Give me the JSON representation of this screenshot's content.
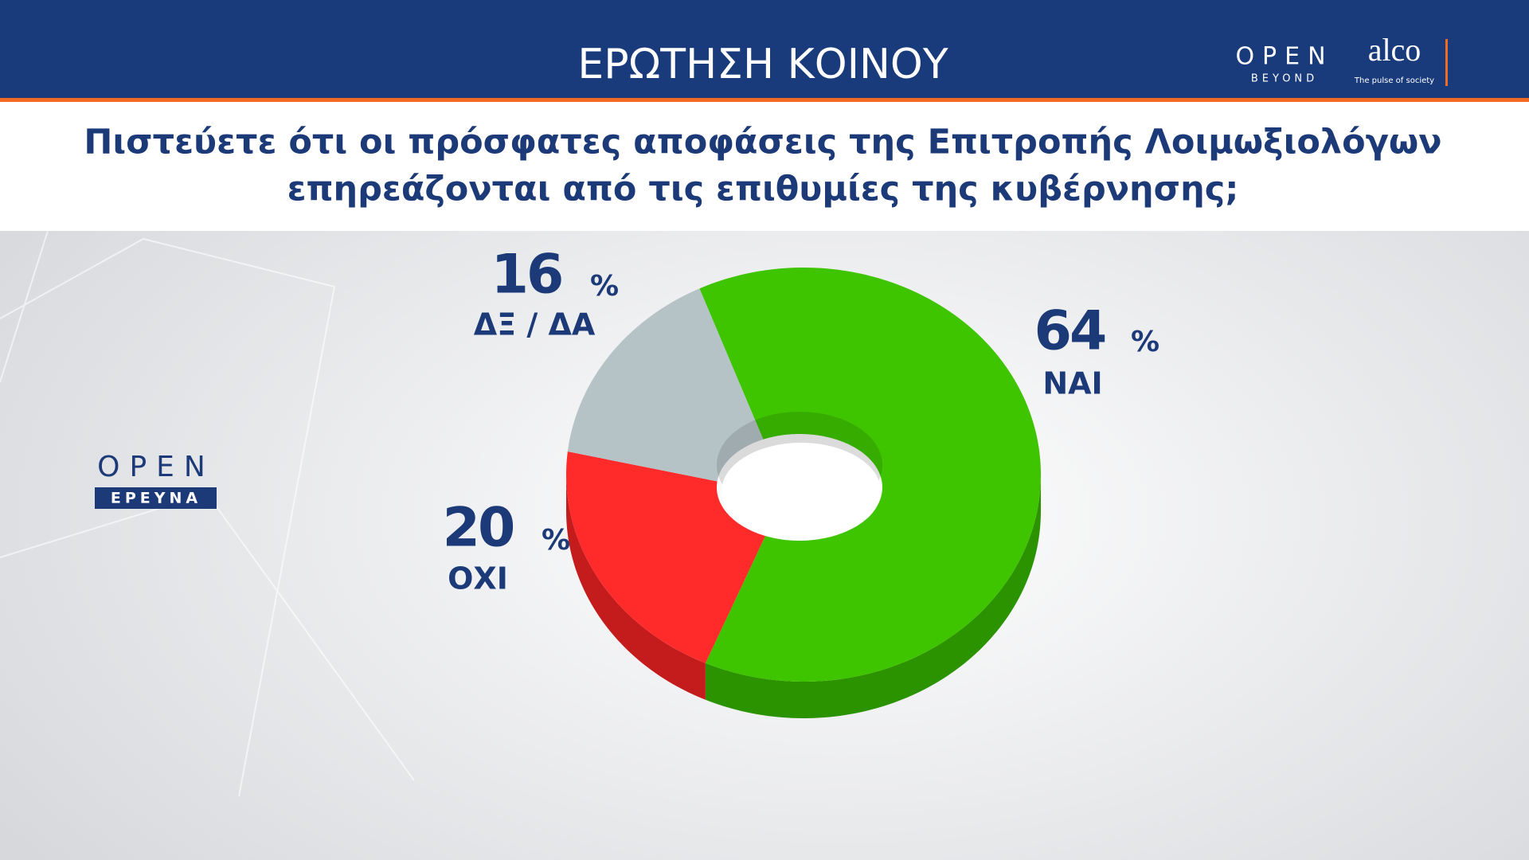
{
  "chart_data": {
    "type": "donut",
    "title": "ΕΡΩΤΗΣΗ ΚΟΙΝΟΥ",
    "subtitle": [
      "Πιστεύετε ότι οι πρόσφατες αποφάσεις της Επιτροπής Λοιμωξιολόγων",
      "επηρεάζονται από τις επιθυμίες της κυβέρνησης;"
    ],
    "categories": [
      "ΝΑΙ",
      "ΟΧΙ",
      "ΔΞ / ΔΑ"
    ],
    "values": [
      64,
      20,
      16
    ],
    "unit": "%",
    "colors": [
      "#3fc400",
      "#ff2b2b",
      "#b5c3c6"
    ]
  },
  "logos": {
    "open_beyond": [
      "OPEN",
      "BEYOND"
    ],
    "alco": [
      "alco",
      "The pulse of society"
    ],
    "open_research": [
      "OPEN",
      "ΕΡΕΥΝΑ"
    ]
  }
}
